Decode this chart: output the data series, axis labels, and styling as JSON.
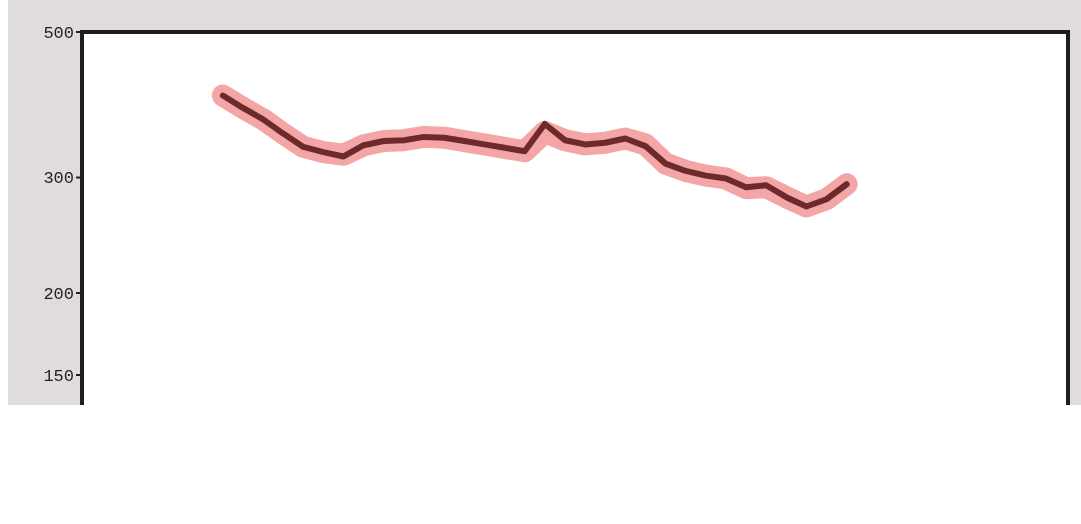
{
  "chart_data": {
    "type": "line",
    "log": "y",
    "ylim": [
      135,
      500
    ],
    "yticks": [
      150,
      200,
      300,
      500
    ],
    "categories": [
      null,
      null,
      null,
      null,
      null,
      null,
      null,
      null,
      null,
      null,
      null,
      null,
      null,
      null,
      null,
      null,
      null,
      null,
      null,
      null,
      null,
      null,
      null,
      null,
      null,
      null,
      null,
      null,
      null,
      null,
      null,
      null,
      null,
      null,
      null,
      null,
      null,
      null,
      null,
      null,
      null,
      null,
      null,
      null,
      null,
      null,
      null,
      null,
      null,
      null
    ],
    "series": [
      {
        "color": "#f4a6a6",
        "values": [
          null,
          null,
          null,
          null,
          null,
          null,
          null,
          400,
          383,
          368,
          350,
          334,
          328,
          325,
          336,
          341,
          342,
          346,
          345,
          341,
          337,
          333,
          329,
          352,
          342,
          337,
          339,
          344,
          337,
          315,
          307,
          302,
          299,
          289,
          290,
          280,
          271,
          278,
          293,
          null,
          null,
          null,
          null,
          null,
          null,
          null,
          null,
          null,
          null,
          null
        ]
      },
      {
        "color": "#6e2a2a",
        "values": [
          null,
          null,
          null,
          null,
          null,
          null,
          null,
          400,
          383,
          368,
          350,
          334,
          328,
          323,
          336,
          341,
          342,
          346,
          345,
          341,
          337,
          333,
          329,
          362,
          342,
          337,
          339,
          344,
          335,
          315,
          307,
          302,
          299,
          290,
          292,
          280,
          271,
          278,
          293,
          null,
          null,
          null,
          null,
          null,
          null,
          null,
          null,
          null,
          null,
          null
        ]
      }
    ]
  }
}
